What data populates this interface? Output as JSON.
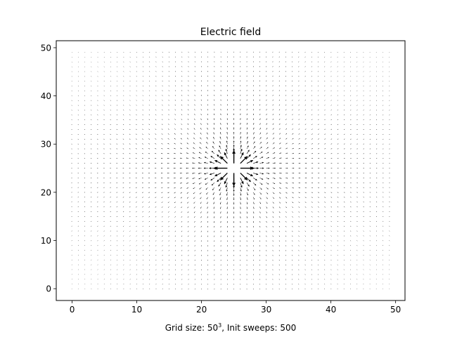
{
  "chart_data": {
    "type": "quiver",
    "title": "Electric field",
    "xlabel": "Grid size: 50",
    "xlabel_sup": "3",
    "xlabel_tail": ", Init sweeps: 500",
    "ylabel": "",
    "xlim": [
      -2.45,
      51.45
    ],
    "ylim": [
      -2.45,
      51.45
    ],
    "xticks": [
      0,
      10,
      20,
      30,
      40,
      50
    ],
    "yticks": [
      0,
      10,
      20,
      30,
      40,
      50
    ],
    "grid": false,
    "grid_range": [
      0,
      49
    ],
    "grid_step": 1,
    "charge_position": [
      25,
      25
    ],
    "field_direction": "radial-outward",
    "arrow_color": "#000000"
  }
}
